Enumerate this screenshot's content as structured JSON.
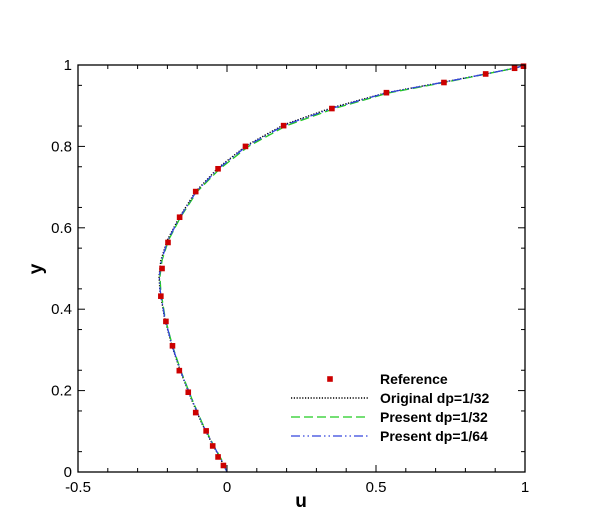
{
  "chart_data": {
    "type": "line",
    "title": "",
    "xlabel": "u",
    "ylabel": "y",
    "xlim": [
      -0.5,
      1
    ],
    "ylim": [
      0,
      1
    ],
    "x_ticks": [
      {
        "value": -0.5,
        "label": "-0.5"
      },
      {
        "value": 0,
        "label": "0"
      },
      {
        "value": 0.5,
        "label": "0.5"
      },
      {
        "value": 1,
        "label": "1"
      }
    ],
    "y_ticks": [
      {
        "value": 0,
        "label": "0"
      },
      {
        "value": 0.2,
        "label": "0.2"
      },
      {
        "value": 0.4,
        "label": "0.4"
      },
      {
        "value": 0.6,
        "label": "0.6"
      },
      {
        "value": 0.8,
        "label": "0.8"
      },
      {
        "value": 1,
        "label": "1"
      }
    ],
    "grid": false,
    "legend_position": "bottom-right",
    "series": [
      {
        "name": "Reference",
        "style": "markers",
        "color": "#cc0000",
        "points": [
          [
            -0.012,
            0.016
          ],
          [
            -0.03,
            0.037
          ],
          [
            -0.048,
            0.064
          ],
          [
            -0.07,
            0.101
          ],
          [
            -0.105,
            0.146
          ],
          [
            -0.13,
            0.196
          ],
          [
            -0.16,
            0.249
          ],
          [
            -0.183,
            0.31
          ],
          [
            -0.205,
            0.37
          ],
          [
            -0.222,
            0.432
          ],
          [
            -0.218,
            0.5
          ],
          [
            -0.198,
            0.564
          ],
          [
            -0.159,
            0.626
          ],
          [
            -0.105,
            0.689
          ],
          [
            -0.03,
            0.745
          ],
          [
            0.062,
            0.8
          ],
          [
            0.19,
            0.851
          ],
          [
            0.352,
            0.893
          ],
          [
            0.535,
            0.932
          ],
          [
            0.728,
            0.957
          ],
          [
            0.868,
            0.978
          ],
          [
            0.965,
            0.992
          ],
          [
            0.995,
            0.997
          ]
        ]
      },
      {
        "name": "Original dp=1/32",
        "style": "dotted",
        "color": "#000000",
        "points": [
          [
            0,
            0
          ],
          [
            -0.02,
            0.03
          ],
          [
            -0.05,
            0.07
          ],
          [
            -0.085,
            0.12
          ],
          [
            -0.12,
            0.18
          ],
          [
            -0.155,
            0.245
          ],
          [
            -0.185,
            0.31
          ],
          [
            -0.21,
            0.38
          ],
          [
            -0.225,
            0.445
          ],
          [
            -0.228,
            0.48
          ],
          [
            -0.222,
            0.52
          ],
          [
            -0.2,
            0.57
          ],
          [
            -0.16,
            0.626
          ],
          [
            -0.105,
            0.689
          ],
          [
            -0.03,
            0.747
          ],
          [
            0.065,
            0.802
          ],
          [
            0.19,
            0.853
          ],
          [
            0.352,
            0.895
          ],
          [
            0.535,
            0.932
          ],
          [
            0.728,
            0.958
          ],
          [
            0.868,
            0.978
          ],
          [
            0.97,
            0.993
          ],
          [
            1,
            1
          ]
        ]
      },
      {
        "name": "Present dp=1/32",
        "style": "dashed",
        "color": "#22cc22",
        "points": [
          [
            0,
            0
          ],
          [
            -0.018,
            0.03
          ],
          [
            -0.048,
            0.07
          ],
          [
            -0.083,
            0.12
          ],
          [
            -0.118,
            0.18
          ],
          [
            -0.153,
            0.245
          ],
          [
            -0.183,
            0.31
          ],
          [
            -0.208,
            0.38
          ],
          [
            -0.222,
            0.445
          ],
          [
            -0.225,
            0.48
          ],
          [
            -0.218,
            0.52
          ],
          [
            -0.196,
            0.57
          ],
          [
            -0.156,
            0.626
          ],
          [
            -0.1,
            0.689
          ],
          [
            -0.024,
            0.745
          ],
          [
            0.072,
            0.8
          ],
          [
            0.2,
            0.851
          ],
          [
            0.36,
            0.893
          ],
          [
            0.54,
            0.931
          ],
          [
            0.73,
            0.957
          ],
          [
            0.87,
            0.978
          ],
          [
            0.97,
            0.993
          ],
          [
            1,
            1
          ]
        ]
      },
      {
        "name": "Present dp=1/64",
        "style": "dashdotdot",
        "color": "#3344dd",
        "points": [
          [
            0,
            0
          ],
          [
            -0.019,
            0.03
          ],
          [
            -0.049,
            0.07
          ],
          [
            -0.084,
            0.12
          ],
          [
            -0.119,
            0.18
          ],
          [
            -0.154,
            0.245
          ],
          [
            -0.184,
            0.31
          ],
          [
            -0.209,
            0.38
          ],
          [
            -0.224,
            0.445
          ],
          [
            -0.227,
            0.48
          ],
          [
            -0.22,
            0.52
          ],
          [
            -0.198,
            0.57
          ],
          [
            -0.158,
            0.626
          ],
          [
            -0.103,
            0.689
          ],
          [
            -0.028,
            0.746
          ],
          [
            0.067,
            0.801
          ],
          [
            0.193,
            0.852
          ],
          [
            0.355,
            0.894
          ],
          [
            0.537,
            0.932
          ],
          [
            0.729,
            0.958
          ],
          [
            0.869,
            0.978
          ],
          [
            0.97,
            0.993
          ],
          [
            1,
            1
          ]
        ]
      }
    ]
  }
}
